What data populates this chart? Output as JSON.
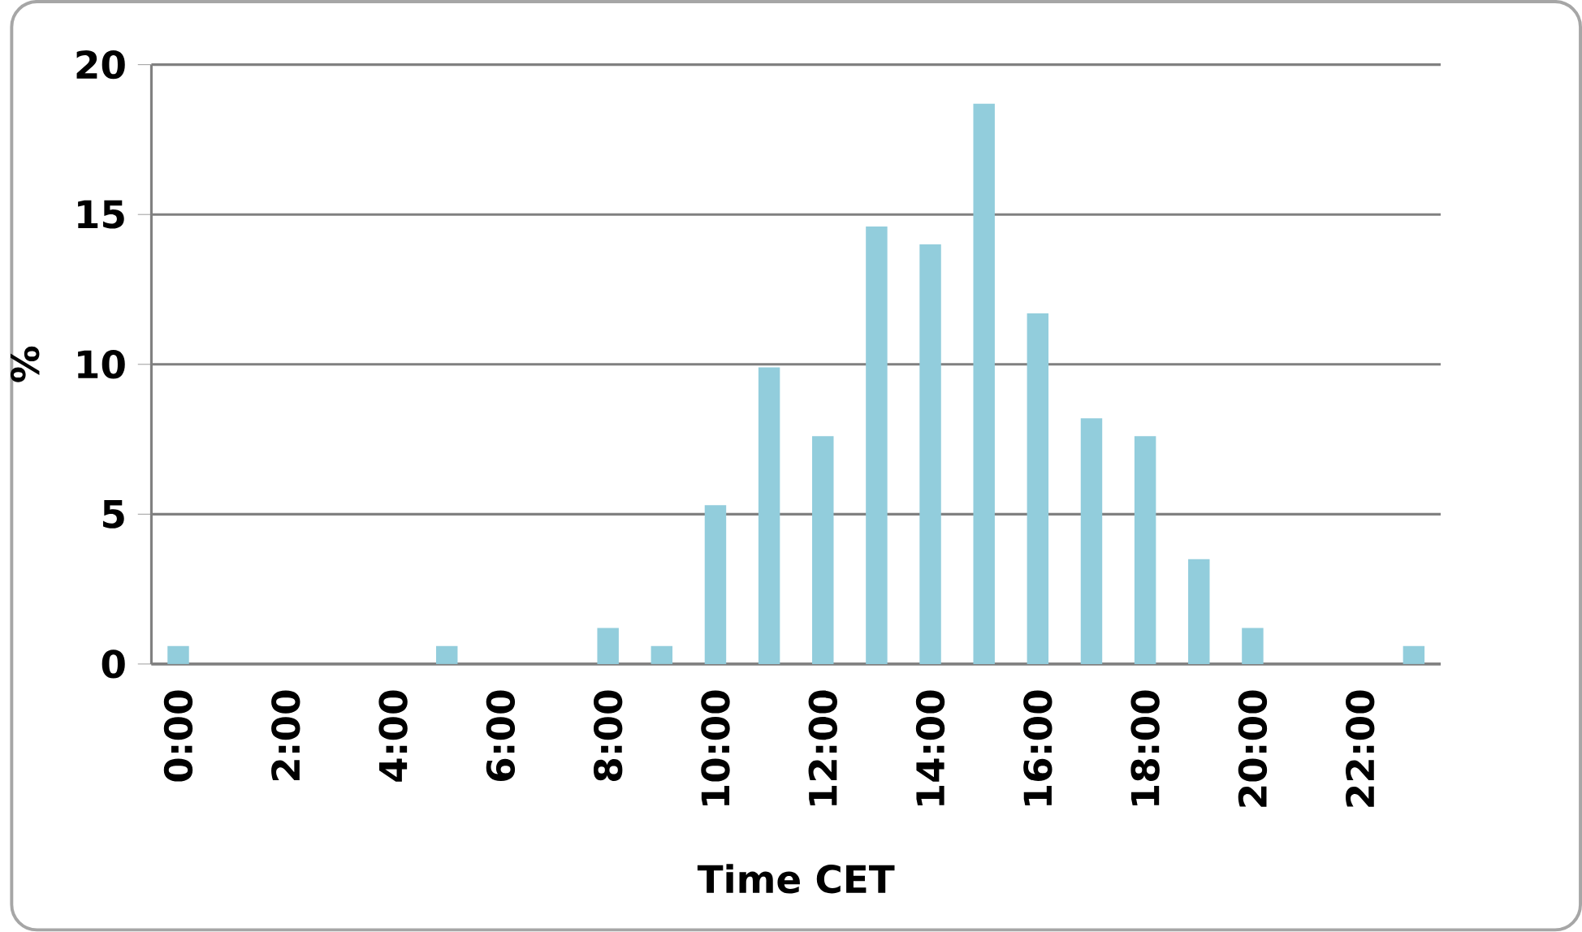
{
  "chart_data": {
    "type": "bar",
    "xlabel": "Time CET",
    "ylabel": "%",
    "categories": [
      "0:00",
      null,
      "2:00",
      null,
      "4:00",
      null,
      "6:00",
      null,
      "8:00",
      null,
      "10:00",
      null,
      "12:00",
      null,
      "14:00",
      null,
      "16:00",
      null,
      "18:00",
      null,
      "20:00",
      null,
      "22:00",
      null
    ],
    "values": [
      0.6,
      0,
      0,
      0,
      0,
      0.6,
      0,
      0,
      1.2,
      0.6,
      5.3,
      9.9,
      7.6,
      14.6,
      14.0,
      18.7,
      11.7,
      8.2,
      7.6,
      3.5,
      1.2,
      0,
      0,
      0.6
    ],
    "color": "#92cddc",
    "ylim": [
      0,
      20
    ],
    "yticks": [
      0,
      5,
      10,
      15,
      20
    ],
    "grid": "y"
  }
}
